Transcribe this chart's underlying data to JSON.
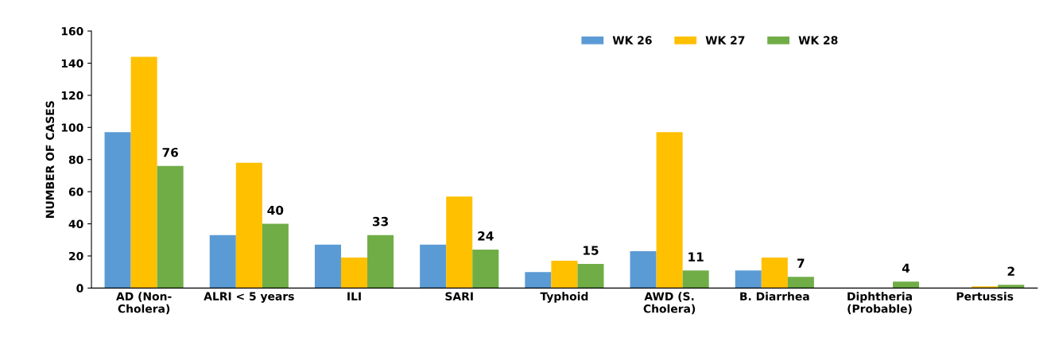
{
  "chart_data": {
    "type": "bar",
    "ylabel": "NUMBER OF CASES",
    "categories": [
      "AD (Non-\nCholera)",
      "ALRI < 5 years",
      "ILI",
      "SARI",
      "Typhoid",
      "AWD (S.\nCholera)",
      "B. Diarrhea",
      "Diphtheria\n(Probable)",
      "Pertussis"
    ],
    "series": [
      {
        "name": "WK 26",
        "color": "#5b9bd5",
        "values": [
          97,
          33,
          27,
          27,
          10,
          23,
          11,
          0,
          0
        ]
      },
      {
        "name": "WK 27",
        "color": "#ffc000",
        "values": [
          144,
          78,
          19,
          57,
          17,
          97,
          19,
          0,
          1
        ]
      },
      {
        "name": "WK 28",
        "color": "#70ad47",
        "values": [
          76,
          40,
          33,
          24,
          15,
          11,
          7,
          4,
          2
        ],
        "value_labels": [
          "76",
          "40",
          "33",
          "24",
          "15",
          "11",
          "7",
          "4",
          "2"
        ]
      }
    ],
    "ylim": [
      0,
      160
    ],
    "yticks": [
      0,
      20,
      40,
      60,
      80,
      100,
      120,
      140,
      160
    ],
    "grid": false,
    "legend": "top right"
  }
}
